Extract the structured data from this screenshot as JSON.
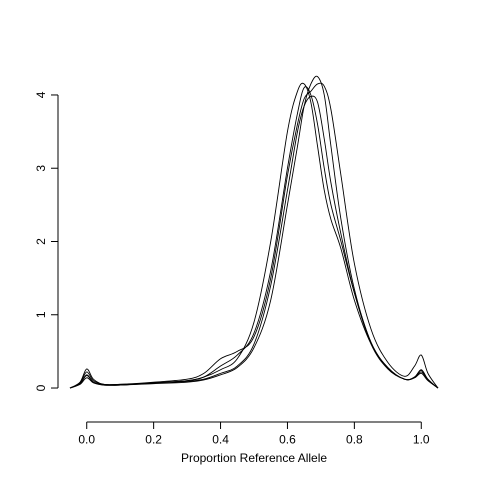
{
  "chart_data": {
    "type": "line",
    "title": "",
    "xlabel": "Proportion Reference Allele",
    "ylabel": "",
    "xlim": [
      -0.05,
      1.05
    ],
    "ylim": [
      -0.3,
      4.45
    ],
    "xticks": [
      "0.0",
      "0.2",
      "0.4",
      "0.6",
      "0.8",
      "1.0"
    ],
    "xtick_values": [
      0.0,
      0.2,
      0.4,
      0.6,
      0.8,
      1.0
    ],
    "yticks": [
      "0",
      "1",
      "2",
      "3",
      "4"
    ],
    "ytick_values": [
      0,
      1,
      2,
      3,
      4
    ],
    "grid": false,
    "line_color": "#000000",
    "series": [
      {
        "x": [
          -0.05,
          -0.02,
          0.0,
          0.02,
          0.05,
          0.1,
          0.2,
          0.3,
          0.35,
          0.4,
          0.45,
          0.5,
          0.55,
          0.6,
          0.63,
          0.65,
          0.67,
          0.69,
          0.71,
          0.73,
          0.76,
          0.8,
          0.85,
          0.9,
          0.95,
          0.98,
          1.0,
          1.02,
          1.05
        ],
        "y": [
          0.0,
          0.08,
          0.26,
          0.12,
          0.05,
          0.05,
          0.08,
          0.12,
          0.2,
          0.4,
          0.5,
          0.7,
          1.5,
          2.9,
          3.6,
          3.95,
          4.05,
          4.15,
          4.12,
          3.8,
          2.9,
          1.7,
          0.8,
          0.35,
          0.16,
          0.3,
          0.45,
          0.2,
          0.0
        ]
      },
      {
        "x": [
          -0.05,
          -0.02,
          0.0,
          0.02,
          0.05,
          0.1,
          0.2,
          0.3,
          0.35,
          0.4,
          0.45,
          0.5,
          0.55,
          0.6,
          0.63,
          0.65,
          0.67,
          0.69,
          0.71,
          0.73,
          0.76,
          0.8,
          0.85,
          0.9,
          0.95,
          0.98,
          1.0,
          1.02,
          1.05
        ],
        "y": [
          0.0,
          0.07,
          0.22,
          0.1,
          0.05,
          0.04,
          0.07,
          0.1,
          0.15,
          0.25,
          0.4,
          0.9,
          2.0,
          3.5,
          4.05,
          4.15,
          3.9,
          3.3,
          2.7,
          2.3,
          1.9,
          1.2,
          0.6,
          0.28,
          0.12,
          0.15,
          0.25,
          0.12,
          0.0
        ]
      },
      {
        "x": [
          -0.05,
          -0.02,
          0.0,
          0.02,
          0.05,
          0.1,
          0.2,
          0.3,
          0.35,
          0.4,
          0.45,
          0.5,
          0.55,
          0.6,
          0.63,
          0.65,
          0.67,
          0.69,
          0.71,
          0.73,
          0.76,
          0.8,
          0.85,
          0.9,
          0.95,
          0.98,
          1.0,
          1.02,
          1.05
        ],
        "y": [
          0.0,
          0.06,
          0.18,
          0.08,
          0.04,
          0.04,
          0.07,
          0.09,
          0.12,
          0.2,
          0.3,
          0.6,
          1.4,
          2.7,
          3.5,
          3.85,
          3.98,
          3.9,
          3.4,
          2.8,
          2.1,
          1.3,
          0.6,
          0.26,
          0.12,
          0.14,
          0.2,
          0.1,
          0.0
        ]
      },
      {
        "x": [
          -0.05,
          -0.02,
          0.0,
          0.02,
          0.05,
          0.1,
          0.2,
          0.3,
          0.35,
          0.4,
          0.45,
          0.5,
          0.55,
          0.6,
          0.63,
          0.65,
          0.67,
          0.69,
          0.71,
          0.73,
          0.76,
          0.8,
          0.85,
          0.9,
          0.95,
          0.98,
          1.0,
          1.02,
          1.05
        ],
        "y": [
          0.0,
          0.05,
          0.14,
          0.07,
          0.04,
          0.04,
          0.06,
          0.08,
          0.11,
          0.18,
          0.28,
          0.55,
          1.2,
          2.5,
          3.3,
          3.85,
          4.15,
          4.25,
          4.0,
          3.3,
          2.3,
          1.35,
          0.62,
          0.28,
          0.12,
          0.15,
          0.24,
          0.11,
          0.0
        ]
      },
      {
        "x": [
          -0.05,
          -0.02,
          0.0,
          0.02,
          0.05,
          0.1,
          0.2,
          0.3,
          0.35,
          0.4,
          0.45,
          0.5,
          0.55,
          0.6,
          0.63,
          0.65,
          0.67,
          0.69,
          0.71,
          0.73,
          0.76,
          0.8,
          0.85,
          0.9,
          0.95,
          0.98,
          1.0,
          1.02,
          1.05
        ],
        "y": [
          0.0,
          0.06,
          0.17,
          0.08,
          0.05,
          0.05,
          0.07,
          0.1,
          0.15,
          0.3,
          0.45,
          0.75,
          1.6,
          3.0,
          3.75,
          4.1,
          4.0,
          3.6,
          3.0,
          2.5,
          2.0,
          1.3,
          0.62,
          0.27,
          0.12,
          0.14,
          0.22,
          0.11,
          0.0
        ]
      }
    ]
  }
}
